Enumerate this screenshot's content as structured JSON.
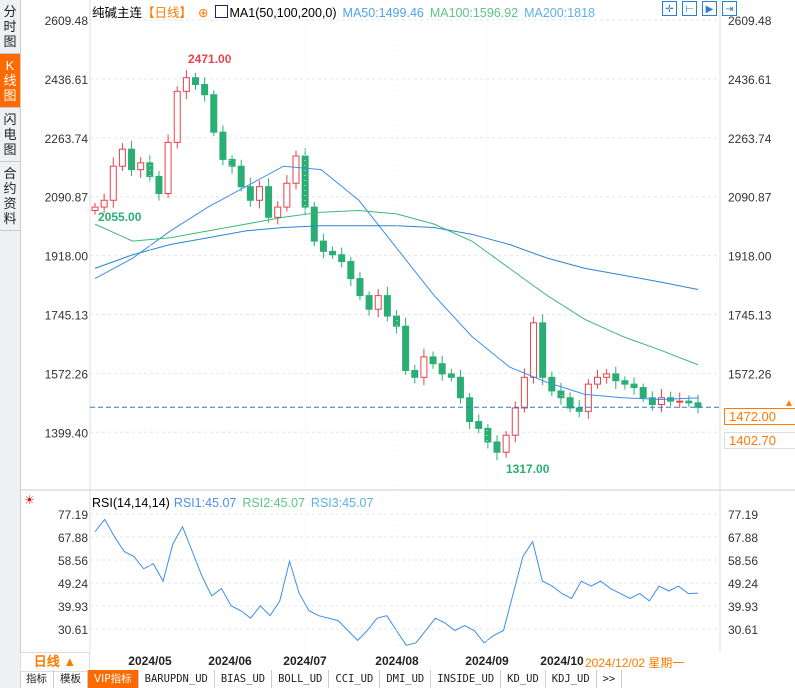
{
  "sidebar": {
    "items": [
      {
        "label": "分时图"
      },
      {
        "label": "K线图",
        "active": true
      },
      {
        "label": "闪电图"
      },
      {
        "label": "合约资料"
      }
    ]
  },
  "header": {
    "symbol": "纯碱主连",
    "period": "【日线】",
    "indicator": "MA1(50,100,200,0)",
    "ma50": "MA50:1499.46",
    "ma100": "MA100:1596.92",
    "ma200": "MA200:1818"
  },
  "toolbar": {
    "icons": [
      "crosshair-icon",
      "zoom-in-icon",
      "play-icon",
      "exit-icon"
    ]
  },
  "colors": {
    "up": "#e8424a",
    "down": "#2aae74",
    "ma50": "#3d8fe8",
    "ma100": "#3cb878",
    "ma200": "#2a86d0",
    "accent": "#ff6a00"
  },
  "price_axis": {
    "labels": [
      "2609.48",
      "2436.61",
      "2263.74",
      "2090.87",
      "1918.00",
      "1745.13",
      "1572.26",
      "1399.40"
    ],
    "current": "1472.00",
    "low_tag": "1402.70",
    "partial": "1399.40"
  },
  "annotations": {
    "high": "2471.00",
    "left_low": "2055.00",
    "low": "1317.00"
  },
  "rsi": {
    "title": "RSI(14,14,14)",
    "rsi1": "RSI1:45.07",
    "rsi2": "RSI2:45.07",
    "rsi3": "RSI3:45.07",
    "labels": [
      "77.19",
      "67.88",
      "58.56",
      "49.24",
      "39.93",
      "30.61"
    ]
  },
  "xaxis": {
    "period_button": "日线 ▲",
    "months": [
      "2024/05",
      "2024/06",
      "2024/07",
      "2024/08",
      "2024/09",
      "2024/10"
    ],
    "cursor_date": "2024/12/02 星期一"
  },
  "tabs": [
    "指标",
    "模板",
    "VIP指标",
    "BARUPDN_UD",
    "BIAS_UD",
    "BOLL_UD",
    "CCI_UD",
    "DMI_UD",
    "INSIDE_UD",
    "KD_UD",
    "KDJ_UD",
    ">>"
  ],
  "chart_data": {
    "type": "candlestick",
    "price_range": [
      1399.4,
      2609.48
    ],
    "closes": [
      2060,
      2080,
      2180,
      2230,
      2170,
      2190,
      2150,
      2100,
      2250,
      2400,
      2440,
      2420,
      2390,
      2280,
      2200,
      2180,
      2120,
      2080,
      2120,
      2030,
      2060,
      2130,
      2210,
      2060,
      1960,
      1930,
      1920,
      1900,
      1850,
      1800,
      1760,
      1800,
      1740,
      1710,
      1580,
      1560,
      1620,
      1600,
      1570,
      1560,
      1500,
      1430,
      1410,
      1370,
      1340,
      1390,
      1470,
      1560,
      1720,
      1560,
      1520,
      1500,
      1470,
      1460,
      1540,
      1560,
      1570,
      1550,
      1540,
      1530,
      1500,
      1480,
      1500,
      1490,
      1490,
      1485,
      1472
    ],
    "ma50": [
      1850,
      1910,
      1990,
      2060,
      2120,
      2180,
      2170,
      2080,
      1940,
      1800,
      1680,
      1590,
      1545,
      1510,
      1500,
      1495,
      1499.46
    ],
    "ma100": [
      2010,
      1960,
      1970,
      1990,
      2010,
      2030,
      2045,
      2050,
      2040,
      2010,
      1960,
      1880,
      1800,
      1730,
      1680,
      1640,
      1596.92
    ],
    "ma200": [
      1880,
      1920,
      1950,
      1970,
      1990,
      2000,
      2005,
      2005,
      2005,
      2000,
      1980,
      1950,
      1910,
      1880,
      1860,
      1840,
      1818
    ],
    "rsi_range": [
      30.61,
      77.19
    ],
    "rsi": [
      70,
      75,
      68,
      62,
      60,
      55,
      57,
      50,
      65,
      72,
      62,
      52,
      44,
      47,
      40,
      38,
      35,
      40,
      36,
      42,
      58,
      45,
      38,
      36,
      35,
      34,
      30,
      26,
      30,
      35,
      36,
      30,
      24,
      25,
      30,
      35,
      33,
      30,
      32,
      30,
      25,
      28,
      30,
      45,
      60,
      66,
      50,
      48,
      45,
      43,
      50,
      48,
      50,
      47,
      45,
      43,
      45,
      42,
      48,
      46,
      48,
      45,
      45.07
    ]
  }
}
